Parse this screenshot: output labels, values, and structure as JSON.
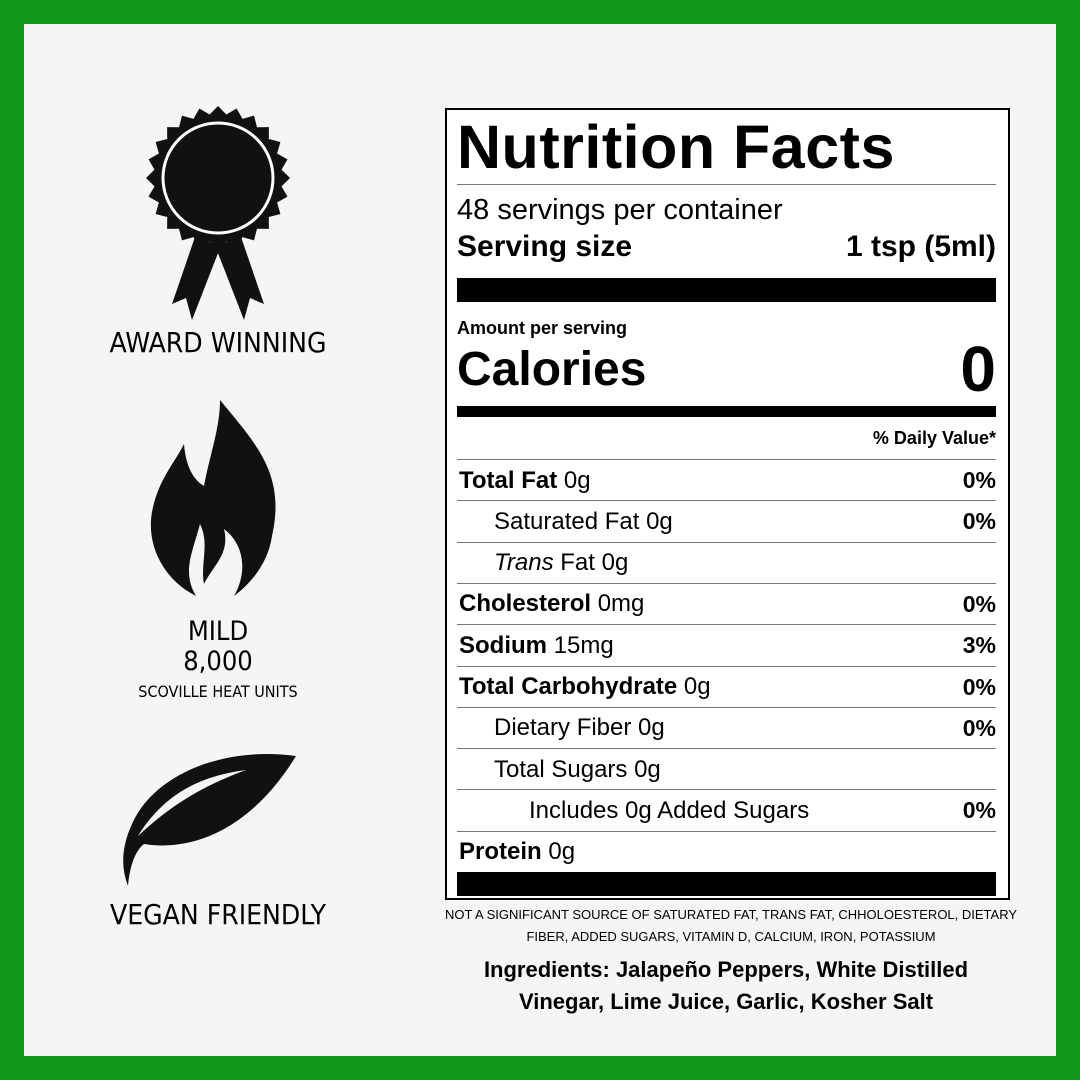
{
  "badges": {
    "award": "AWARD WINNING",
    "heat_level": "MILD",
    "heat_value": "8,000",
    "heat_unit": "SCOVILLE HEAT UNITS",
    "vegan": "VEGAN FRIENDLY"
  },
  "nutrition": {
    "title": "Nutrition Facts",
    "servings": "48 servings per container",
    "serving_size_label": "Serving size",
    "serving_size": "1 tsp (5ml)",
    "amount_per_serving": "Amount per serving",
    "calories_label": "Calories",
    "calories": "0",
    "daily_value_header": "% Daily Value*",
    "rows": [
      {
        "name": "Total Fat",
        "amount": "0g",
        "dv": "0%"
      },
      {
        "name": "Saturated Fat 0g",
        "dv": "0%"
      },
      {
        "prefix": "Trans",
        "name": "Fat 0g"
      },
      {
        "name": "Cholesterol",
        "amount": "0mg",
        "dv": "0%"
      },
      {
        "name": "Sodium",
        "amount": "15mg",
        "dv": "3%"
      },
      {
        "name": "Total Carbohydrate",
        "amount": "0g",
        "dv": "0%"
      },
      {
        "name": "Dietary Fiber 0g",
        "dv": "0%"
      },
      {
        "name": "Total Sugars 0g"
      },
      {
        "name": "Includes 0g Added Sugars",
        "dv": "0%"
      },
      {
        "name": "Protein",
        "amount": "0g"
      }
    ]
  },
  "footnote": "NOT A SIGNIFICANT SOURCE OF SATURATED FAT, TRANS FAT, CHHOLOESTEROL, DIETARY FIBER, ADDED SUGARS, VITAMIN D, CALCIUM, IRON, POTASSIUM",
  "ingredients": "Ingredients: Jalapeño Peppers, White Distilled Vinegar, Lime Juice, Garlic, Kosher Salt"
}
